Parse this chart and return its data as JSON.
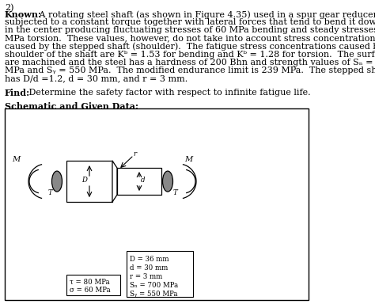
{
  "title_number": "2)",
  "known_label": "Known:",
  "known_lines": [
    " A rotating steel shaft (as shown in Figure 4.35) used in a spur gear reducer is",
    "subjected to a constant torque together with lateral forces that tend to bend it downward",
    "in the center producing fluctuating stresses of 60 MPa bending and steady stresses of 80",
    "MPa torsion.  These values, however, do not take into account stress concentrations",
    "caused by the stepped shaft (shoulder).  The fatigue stress concentrations caused by the",
    "shoulder of the shaft are Kᵇ = 1.53 for bending and Kᵇ = 1.28 for torsion.  The surfaces",
    "are machined and the steel has a hardness of 200 Bhn and strength values of Sₙ = 700",
    "MPa and Sᵧ = 550 MPa.  The modified endurance limit is 239 MPa.  The stepped shaft",
    "has D/d =1.2, d = 30 mm, and r = 3 mm."
  ],
  "find_label": "Find:",
  "find_text": " Determine the safety factor with respect to infinite fatigue life.",
  "schematic_label": "Schematic and Given Data:",
  "left_box_text1": "τ = 80 MPa",
  "left_box_text2": "σ = 60 MPa",
  "right_box_lines": [
    "D = 36 mm",
    "d = 30 mm",
    "r = 3 mm",
    "Sₙ = 700 MPa",
    "Sᵧ = 550 MPa"
  ],
  "background_color": "#ffffff",
  "text_color": "#000000",
  "font_size_main": 8.0,
  "font_size_schematic": 6.2
}
